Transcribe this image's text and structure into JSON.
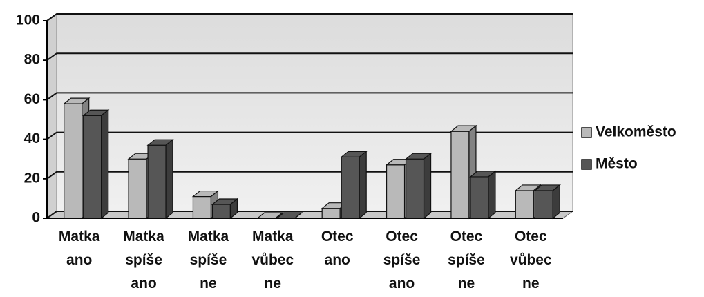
{
  "chart_data": {
    "type": "bar3d",
    "categories": [
      "Matka ano",
      "Matka spíše ano",
      "Matka spíše ne",
      "Matka vůbec ne",
      "Otec ano",
      "Otec spíše ano",
      "Otec spíše ne",
      "Otec vůbec ne"
    ],
    "series": [
      {
        "name": "Velkoměsto",
        "color": "#b9b9b9",
        "values": [
          58,
          30,
          11,
          0,
          5,
          27,
          44,
          14
        ]
      },
      {
        "name": "Město",
        "color": "#565656",
        "values": [
          52,
          37,
          7,
          0,
          31,
          30,
          21,
          14
        ]
      }
    ],
    "ylim": [
      0,
      100
    ],
    "yticks": [
      0,
      20,
      40,
      60,
      80,
      100
    ],
    "grid": true,
    "legend": "right"
  }
}
